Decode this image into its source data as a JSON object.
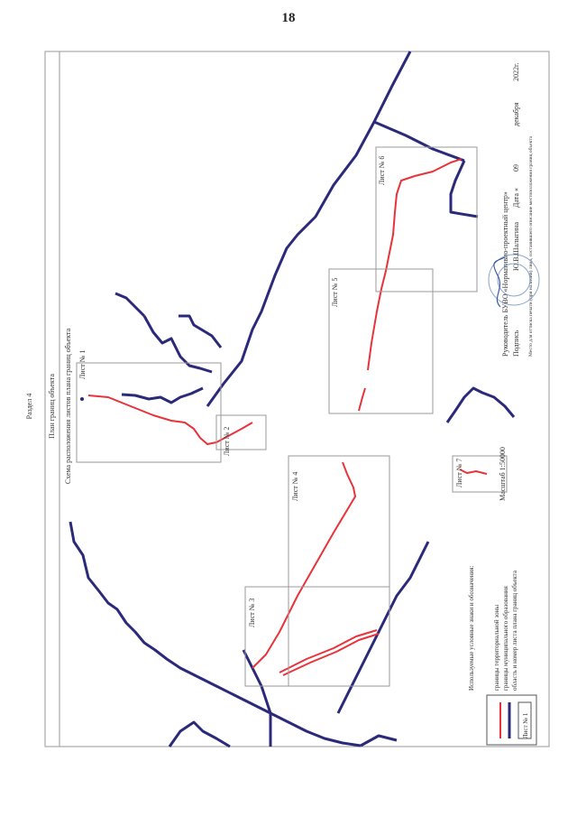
{
  "page_number": "18",
  "section": "Раздел 4",
  "title": "План границ объекта",
  "subtitle": "Схема расположения листов плана границ объекта",
  "scale": "Масштаб 1:50000",
  "sheets": [
    {
      "label": "Лист № 1"
    },
    {
      "label": "Лист № 2"
    },
    {
      "label": "Лист № 3"
    },
    {
      "label": "Лист № 4"
    },
    {
      "label": "Лист № 5"
    },
    {
      "label": "Лист № 6"
    },
    {
      "label": "Лист № 7"
    }
  ],
  "legend": {
    "heading": "Используемые условные знаки и обозначения:",
    "items": [
      {
        "text": "границы территориальной зоны",
        "color": "#e8333b"
      },
      {
        "text": "границы муниципального образования",
        "color": "#2b2a7a"
      },
      {
        "text": "область и номер листа плана границ объекта",
        "symbol": "Лист № 1"
      }
    ]
  },
  "signature": {
    "line1": "Руководитель БУВО «Нормативно-проектный центр»",
    "line2_prefix": "Подпись",
    "name": "Ю.В.Шалыгина",
    "date_label": "Дата «",
    "day": "09",
    "month": "декабря",
    "year": "2022г.",
    "note": "Место для оттиска печати (при наличии) лица, составившего описание местоположения границ объекта"
  },
  "colors": {
    "zone": "#e8333b",
    "municipal": "#2b2a7a",
    "frame": "#999999"
  }
}
